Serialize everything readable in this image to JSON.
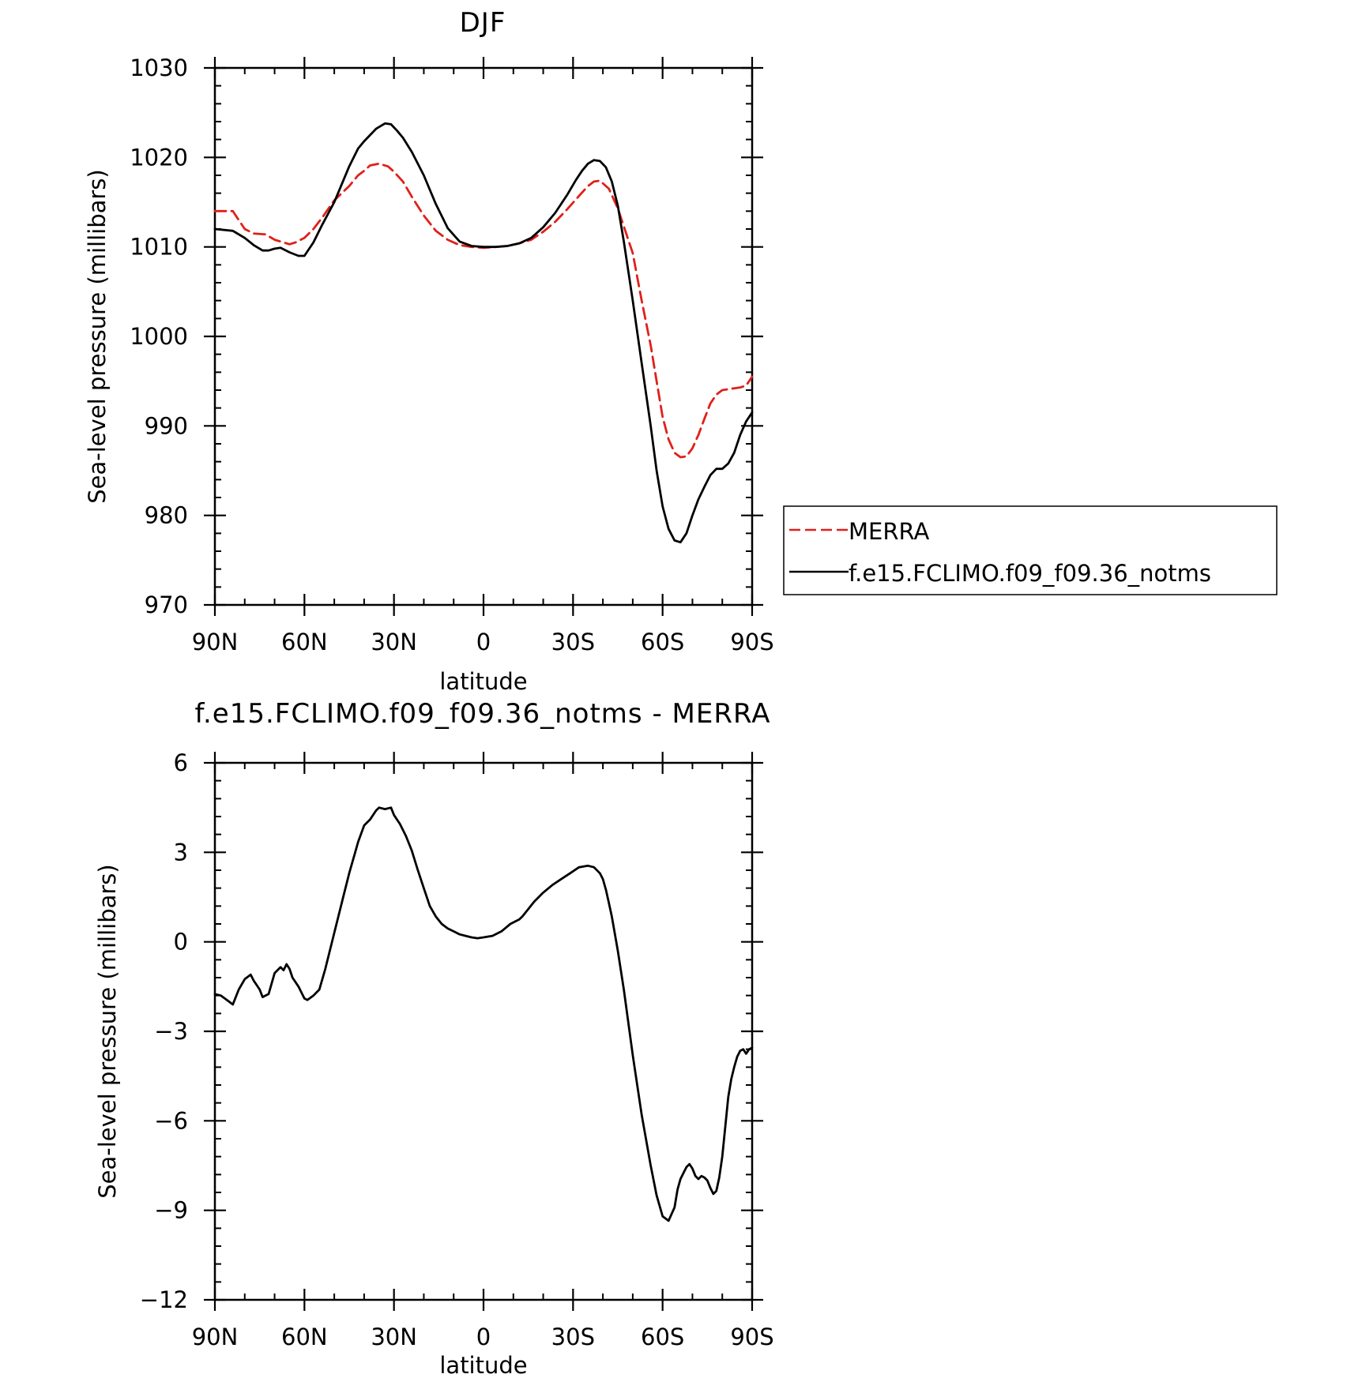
{
  "chart_data": [
    {
      "type": "line",
      "title": "DJF",
      "xlabel": "latitude",
      "ylabel": "Sea-level pressure (millibars)",
      "xlim": [
        90,
        -90
      ],
      "ylim": [
        970,
        1030
      ],
      "xticks": [
        {
          "value": 90,
          "label": "90N"
        },
        {
          "value": 60,
          "label": "60N"
        },
        {
          "value": 30,
          "label": "30N"
        },
        {
          "value": 0,
          "label": "0"
        },
        {
          "value": -30,
          "label": "30S"
        },
        {
          "value": -60,
          "label": "60S"
        },
        {
          "value": -90,
          "label": "90S"
        }
      ],
      "yticks": [
        {
          "value": 1030,
          "label": "1030"
        },
        {
          "value": 1020,
          "label": "1020"
        },
        {
          "value": 1010,
          "label": "1010"
        },
        {
          "value": 1000,
          "label": "1000"
        },
        {
          "value": 990,
          "label": "990"
        },
        {
          "value": 980,
          "label": "980"
        },
        {
          "value": 970,
          "label": "970"
        }
      ],
      "grid": false,
      "legend": "right",
      "series": [
        {
          "name": "MERRA",
          "color": "#e0201b",
          "dash": true,
          "x": [
            90,
            84,
            83,
            80,
            77,
            73,
            70,
            67,
            65,
            63,
            60,
            57,
            54,
            50,
            45,
            42,
            40,
            38,
            35,
            32,
            30,
            27,
            24,
            20,
            16,
            12,
            8,
            4,
            0,
            -4,
            -8,
            -12,
            -16,
            -20,
            -24,
            -28,
            -32,
            -35,
            -37,
            -39,
            -42,
            -45,
            -50,
            -53,
            -56,
            -58,
            -60,
            -62,
            -64,
            -66,
            -68,
            -70,
            -72,
            -74,
            -76,
            -78,
            -80,
            -82,
            -84,
            -86,
            -88,
            -90
          ],
          "y": [
            1014.0,
            1014.0,
            1013.5,
            1012.0,
            1011.5,
            1011.4,
            1010.8,
            1010.5,
            1010.3,
            1010.5,
            1011.0,
            1012.0,
            1013.3,
            1015.2,
            1016.8,
            1018.0,
            1018.5,
            1019.1,
            1019.3,
            1019.0,
            1018.4,
            1017.3,
            1015.6,
            1013.5,
            1011.8,
            1010.8,
            1010.2,
            1010.0,
            1009.9,
            1010.0,
            1010.1,
            1010.4,
            1010.8,
            1011.7,
            1012.8,
            1014.2,
            1015.7,
            1016.8,
            1017.3,
            1017.4,
            1016.5,
            1014.3,
            1009.3,
            1004.0,
            999.0,
            995.0,
            991.0,
            988.5,
            987.0,
            986.5,
            986.6,
            987.5,
            989.0,
            990.8,
            992.5,
            993.5,
            994.0,
            994.1,
            994.2,
            994.3,
            994.5,
            995.5
          ]
        },
        {
          "name": "f.e15.FCLIMO.f09_f09.36_notms",
          "color": "#000000",
          "dash": false,
          "x": [
            90,
            84,
            83,
            80,
            77,
            74,
            72,
            70,
            68,
            65,
            62,
            60,
            57,
            54,
            50,
            45,
            42,
            40,
            36,
            33,
            31,
            29,
            27,
            24,
            20,
            16,
            12,
            8,
            4,
            0,
            -4,
            -8,
            -12,
            -16,
            -20,
            -24,
            -28,
            -31,
            -33,
            -35,
            -37,
            -39,
            -41,
            -43,
            -45,
            -47,
            -50,
            -53,
            -56,
            -58,
            -60,
            -62,
            -64,
            -66,
            -68,
            -70,
            -72,
            -74,
            -76,
            -78,
            -80,
            -82,
            -84,
            -86,
            -88,
            -90
          ],
          "y": [
            1012.0,
            1011.8,
            1011.6,
            1011.0,
            1010.2,
            1009.6,
            1009.6,
            1009.8,
            1009.9,
            1009.4,
            1009.0,
            1009.0,
            1010.5,
            1012.5,
            1015.0,
            1019.0,
            1021.0,
            1021.8,
            1023.2,
            1023.8,
            1023.7,
            1023.0,
            1022.2,
            1020.6,
            1018.0,
            1014.8,
            1012.1,
            1010.6,
            1010.1,
            1010.0,
            1010.0,
            1010.1,
            1010.4,
            1011.0,
            1012.2,
            1013.8,
            1015.8,
            1017.5,
            1018.5,
            1019.3,
            1019.7,
            1019.6,
            1018.9,
            1017.3,
            1014.6,
            1010.6,
            1004.0,
            997.0,
            990.0,
            985.0,
            981.0,
            978.5,
            977.2,
            977.0,
            978.0,
            980.0,
            981.8,
            983.2,
            984.5,
            985.2,
            985.2,
            985.8,
            987.0,
            989.0,
            990.5,
            991.5
          ]
        }
      ]
    },
    {
      "type": "line",
      "title": "f.e15.FCLIMO.f09_f09.36_notms - MERRA",
      "xlabel": "latitude",
      "ylabel": "Sea-level pressure (millibars)",
      "xlim": [
        90,
        -90
      ],
      "ylim": [
        -12,
        6
      ],
      "xticks": [
        {
          "value": 90,
          "label": "90N"
        },
        {
          "value": 60,
          "label": "60N"
        },
        {
          "value": 30,
          "label": "30N"
        },
        {
          "value": 0,
          "label": "0"
        },
        {
          "value": -30,
          "label": "30S"
        },
        {
          "value": -60,
          "label": "60S"
        },
        {
          "value": -90,
          "label": "90S"
        }
      ],
      "yticks": [
        {
          "value": 6,
          "label": "6"
        },
        {
          "value": 3,
          "label": "3"
        },
        {
          "value": 0,
          "label": "0"
        },
        {
          "value": -3,
          "label": "−3"
        },
        {
          "value": -6,
          "label": "−6"
        },
        {
          "value": -9,
          "label": "−9"
        },
        {
          "value": -12,
          "label": "−12"
        }
      ],
      "grid": false,
      "series": [
        {
          "color": "#000000",
          "dash": false,
          "x": [
            90,
            88,
            86,
            84,
            82,
            80,
            78,
            77,
            76,
            75,
            74,
            72,
            70,
            68,
            67,
            66,
            65,
            64,
            62,
            60,
            59,
            57,
            55,
            53,
            50,
            47,
            45,
            43,
            42,
            40,
            38,
            36,
            35,
            33,
            31,
            30,
            29,
            28,
            26,
            24,
            22,
            20,
            18,
            16,
            14,
            12,
            10,
            8,
            6,
            4,
            2,
            0,
            -3,
            -6,
            -9,
            -12,
            -13,
            -15,
            -17,
            -20,
            -23,
            -26,
            -29,
            -32,
            -35,
            -37,
            -39,
            -40,
            -41,
            -42,
            -43,
            -45,
            -47,
            -50,
            -53,
            -56,
            -58,
            -60,
            -62,
            -64,
            -65,
            -66,
            -67,
            -68,
            -69,
            -70,
            -71,
            -72,
            -73,
            -74,
            -75,
            -76,
            -77,
            -78,
            -79,
            -80,
            -81,
            -82,
            -83,
            -84,
            -85,
            -86,
            -87,
            -88,
            -89,
            -90
          ],
          "y": [
            -1.75,
            -1.8,
            -1.95,
            -2.1,
            -1.6,
            -1.25,
            -1.1,
            -1.3,
            -1.45,
            -1.6,
            -1.85,
            -1.75,
            -1.05,
            -0.85,
            -0.95,
            -0.75,
            -0.9,
            -1.2,
            -1.5,
            -1.9,
            -1.95,
            -1.8,
            -1.6,
            -0.9,
            0.3,
            1.5,
            2.3,
            3.0,
            3.35,
            3.9,
            4.1,
            4.4,
            4.5,
            4.45,
            4.5,
            4.25,
            4.1,
            3.95,
            3.55,
            3.05,
            2.4,
            1.8,
            1.2,
            0.85,
            0.6,
            0.45,
            0.35,
            0.25,
            0.2,
            0.15,
            0.12,
            0.15,
            0.2,
            0.35,
            0.6,
            0.75,
            0.85,
            1.1,
            1.35,
            1.65,
            1.9,
            2.1,
            2.3,
            2.5,
            2.55,
            2.5,
            2.3,
            2.1,
            1.75,
            1.3,
            0.85,
            -0.3,
            -1.6,
            -3.8,
            -5.8,
            -7.5,
            -8.5,
            -9.2,
            -9.35,
            -8.9,
            -8.3,
            -7.95,
            -7.75,
            -7.55,
            -7.45,
            -7.6,
            -7.85,
            -7.95,
            -7.85,
            -7.9,
            -8.0,
            -8.25,
            -8.45,
            -8.35,
            -7.9,
            -7.2,
            -6.2,
            -5.2,
            -4.6,
            -4.2,
            -3.85,
            -3.65,
            -3.6,
            -3.75,
            -3.6,
            -3.55
          ]
        }
      ]
    }
  ]
}
